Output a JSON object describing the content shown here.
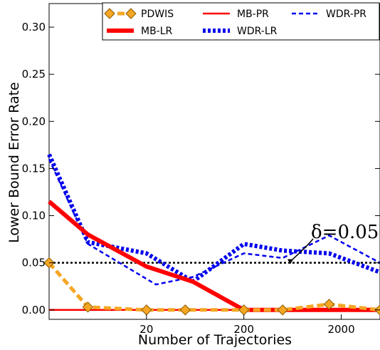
{
  "chart_data": {
    "type": "line",
    "xlabel": "Number of Trajectories",
    "ylabel": "Lower Bound Error Rate",
    "x_scale": "log",
    "xlim": [
      2,
      5000
    ],
    "ylim": [
      -0.01,
      0.325
    ],
    "x_ticks": [
      {
        "value": 20,
        "label": "20"
      },
      {
        "value": 200,
        "label": "200"
      },
      {
        "value": 2000,
        "label": "2000"
      }
    ],
    "y_ticks": [
      {
        "value": 0.0,
        "label": "0.00"
      },
      {
        "value": 0.05,
        "label": "0.05"
      },
      {
        "value": 0.1,
        "label": "0.10"
      },
      {
        "value": 0.15,
        "label": "0.15"
      },
      {
        "value": 0.2,
        "label": "0.20"
      },
      {
        "value": 0.25,
        "label": "0.25"
      },
      {
        "value": 0.3,
        "label": "0.30"
      }
    ],
    "grid": false,
    "legend_position": "top",
    "series": [
      {
        "name": "PDWIS",
        "color": "#f5a623",
        "style": "dashed-marker",
        "marker": "diamond",
        "x": [
          2,
          5,
          20,
          50,
          200,
          500,
          1500,
          5000
        ],
        "y": [
          0.05,
          0.003,
          0.0,
          0.0,
          0.0,
          0.0,
          0.006,
          0.0
        ]
      },
      {
        "name": "MB-LR",
        "color": "#ff0000",
        "style": "solid-thick",
        "x": [
          2,
          5,
          20,
          60,
          200,
          500,
          1500,
          5000
        ],
        "y": [
          0.115,
          0.08,
          0.046,
          0.03,
          0.0,
          0.0,
          0.0,
          0.0
        ]
      },
      {
        "name": "MB-PR",
        "color": "#ff0000",
        "style": "solid-thin",
        "x": [
          2,
          5000
        ],
        "y": [
          0.0,
          0.0
        ]
      },
      {
        "name": "WDR-LR",
        "color": "#0000ee",
        "style": "dotted-thick",
        "x": [
          2,
          5,
          20,
          60,
          200,
          500,
          1500,
          5000
        ],
        "y": [
          0.165,
          0.072,
          0.06,
          0.03,
          0.07,
          0.063,
          0.06,
          0.04
        ]
      },
      {
        "name": "WDR-PR",
        "color": "#0000ee",
        "style": "dashed-thin",
        "x": [
          2,
          5,
          25,
          60,
          200,
          500,
          1500,
          5000
        ],
        "y": [
          0.16,
          0.07,
          0.027,
          0.035,
          0.06,
          0.055,
          0.079,
          0.05
        ]
      }
    ],
    "reference_line": {
      "y": 0.05,
      "color": "#000000",
      "style": "dotted"
    },
    "annotation": {
      "text": "δ=0.05",
      "target_x": 600,
      "target_y": 0.05
    }
  }
}
